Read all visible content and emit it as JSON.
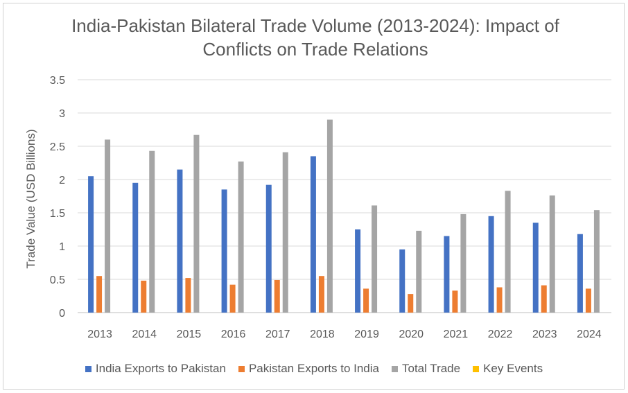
{
  "chart_data": {
    "type": "bar",
    "title": "India-Pakistan Bilateral Trade Volume (2013-2024): Impact of Conflicts on Trade Relations",
    "ylabel": "Trade Value (USD Billions)",
    "xlabel": "",
    "ylim": [
      0,
      3.5
    ],
    "yticks": [
      "0",
      "0.5",
      "1",
      "1.5",
      "2",
      "2.5",
      "3",
      "3.5"
    ],
    "grid": true,
    "legend_position": "bottom",
    "categories": [
      "2013",
      "2014",
      "2015",
      "2016",
      "2017",
      "2018",
      "2019",
      "2020",
      "2021",
      "2022",
      "2023",
      "2024"
    ],
    "series": [
      {
        "name": "India Exports to Pakistan",
        "color": "#4472C4",
        "values": [
          2.05,
          1.95,
          2.15,
          1.85,
          1.92,
          2.35,
          1.25,
          0.95,
          1.15,
          1.45,
          1.35,
          1.18
        ]
      },
      {
        "name": "Pakistan Exports to India",
        "color": "#ED7D31",
        "values": [
          0.55,
          0.48,
          0.52,
          0.42,
          0.49,
          0.55,
          0.36,
          0.28,
          0.33,
          0.38,
          0.41,
          0.36
        ]
      },
      {
        "name": "Total Trade",
        "color": "#A5A5A5",
        "values": [
          2.6,
          2.43,
          2.67,
          2.27,
          2.41,
          2.9,
          1.61,
          1.23,
          1.48,
          1.83,
          1.76,
          1.54
        ]
      },
      {
        "name": "Key Events",
        "color": "#FFC000",
        "values": [
          0,
          0,
          0,
          0,
          0,
          0,
          0,
          0,
          0,
          0,
          0,
          0
        ]
      }
    ]
  }
}
